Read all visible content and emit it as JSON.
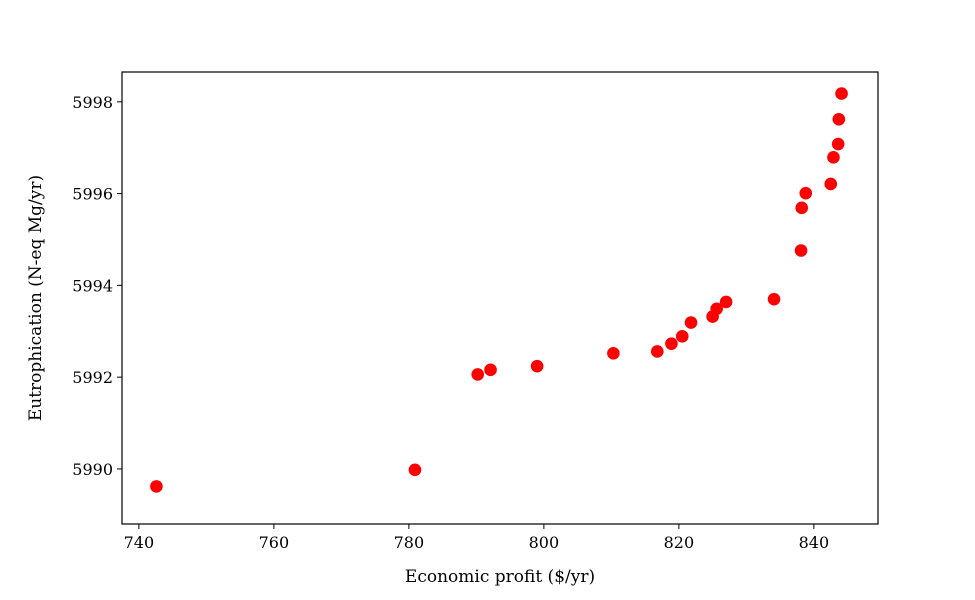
{
  "chart_data": {
    "type": "scatter",
    "xlabel": "Economic profit ($/yr)",
    "ylabel": "Eutrophication (N-eq Mg/yr)",
    "xlim": [
      737.5,
      849.5
    ],
    "ylim": [
      5988.8,
      5998.65
    ],
    "x_ticks": [
      740,
      760,
      780,
      800,
      820,
      840
    ],
    "y_ticks": [
      5990,
      5992,
      5994,
      5996,
      5998
    ],
    "grid": false,
    "marker_color": "#ff0000",
    "points": [
      {
        "x": 742.6,
        "y": 5989.62
      },
      {
        "x": 780.9,
        "y": 5989.98
      },
      {
        "x": 790.2,
        "y": 5992.06
      },
      {
        "x": 792.1,
        "y": 5992.16
      },
      {
        "x": 799.0,
        "y": 5992.24
      },
      {
        "x": 810.3,
        "y": 5992.52
      },
      {
        "x": 816.8,
        "y": 5992.56
      },
      {
        "x": 818.9,
        "y": 5992.73
      },
      {
        "x": 820.5,
        "y": 5992.89
      },
      {
        "x": 821.8,
        "y": 5993.19
      },
      {
        "x": 825.0,
        "y": 5993.32
      },
      {
        "x": 825.6,
        "y": 5993.49
      },
      {
        "x": 827.0,
        "y": 5993.64
      },
      {
        "x": 834.1,
        "y": 5993.7
      },
      {
        "x": 838.1,
        "y": 5994.76
      },
      {
        "x": 838.2,
        "y": 5995.69
      },
      {
        "x": 838.8,
        "y": 5996.01
      },
      {
        "x": 842.5,
        "y": 5996.21
      },
      {
        "x": 842.9,
        "y": 5996.79
      },
      {
        "x": 843.6,
        "y": 5997.08
      },
      {
        "x": 843.7,
        "y": 5997.62
      },
      {
        "x": 844.1,
        "y": 5998.18
      }
    ]
  }
}
